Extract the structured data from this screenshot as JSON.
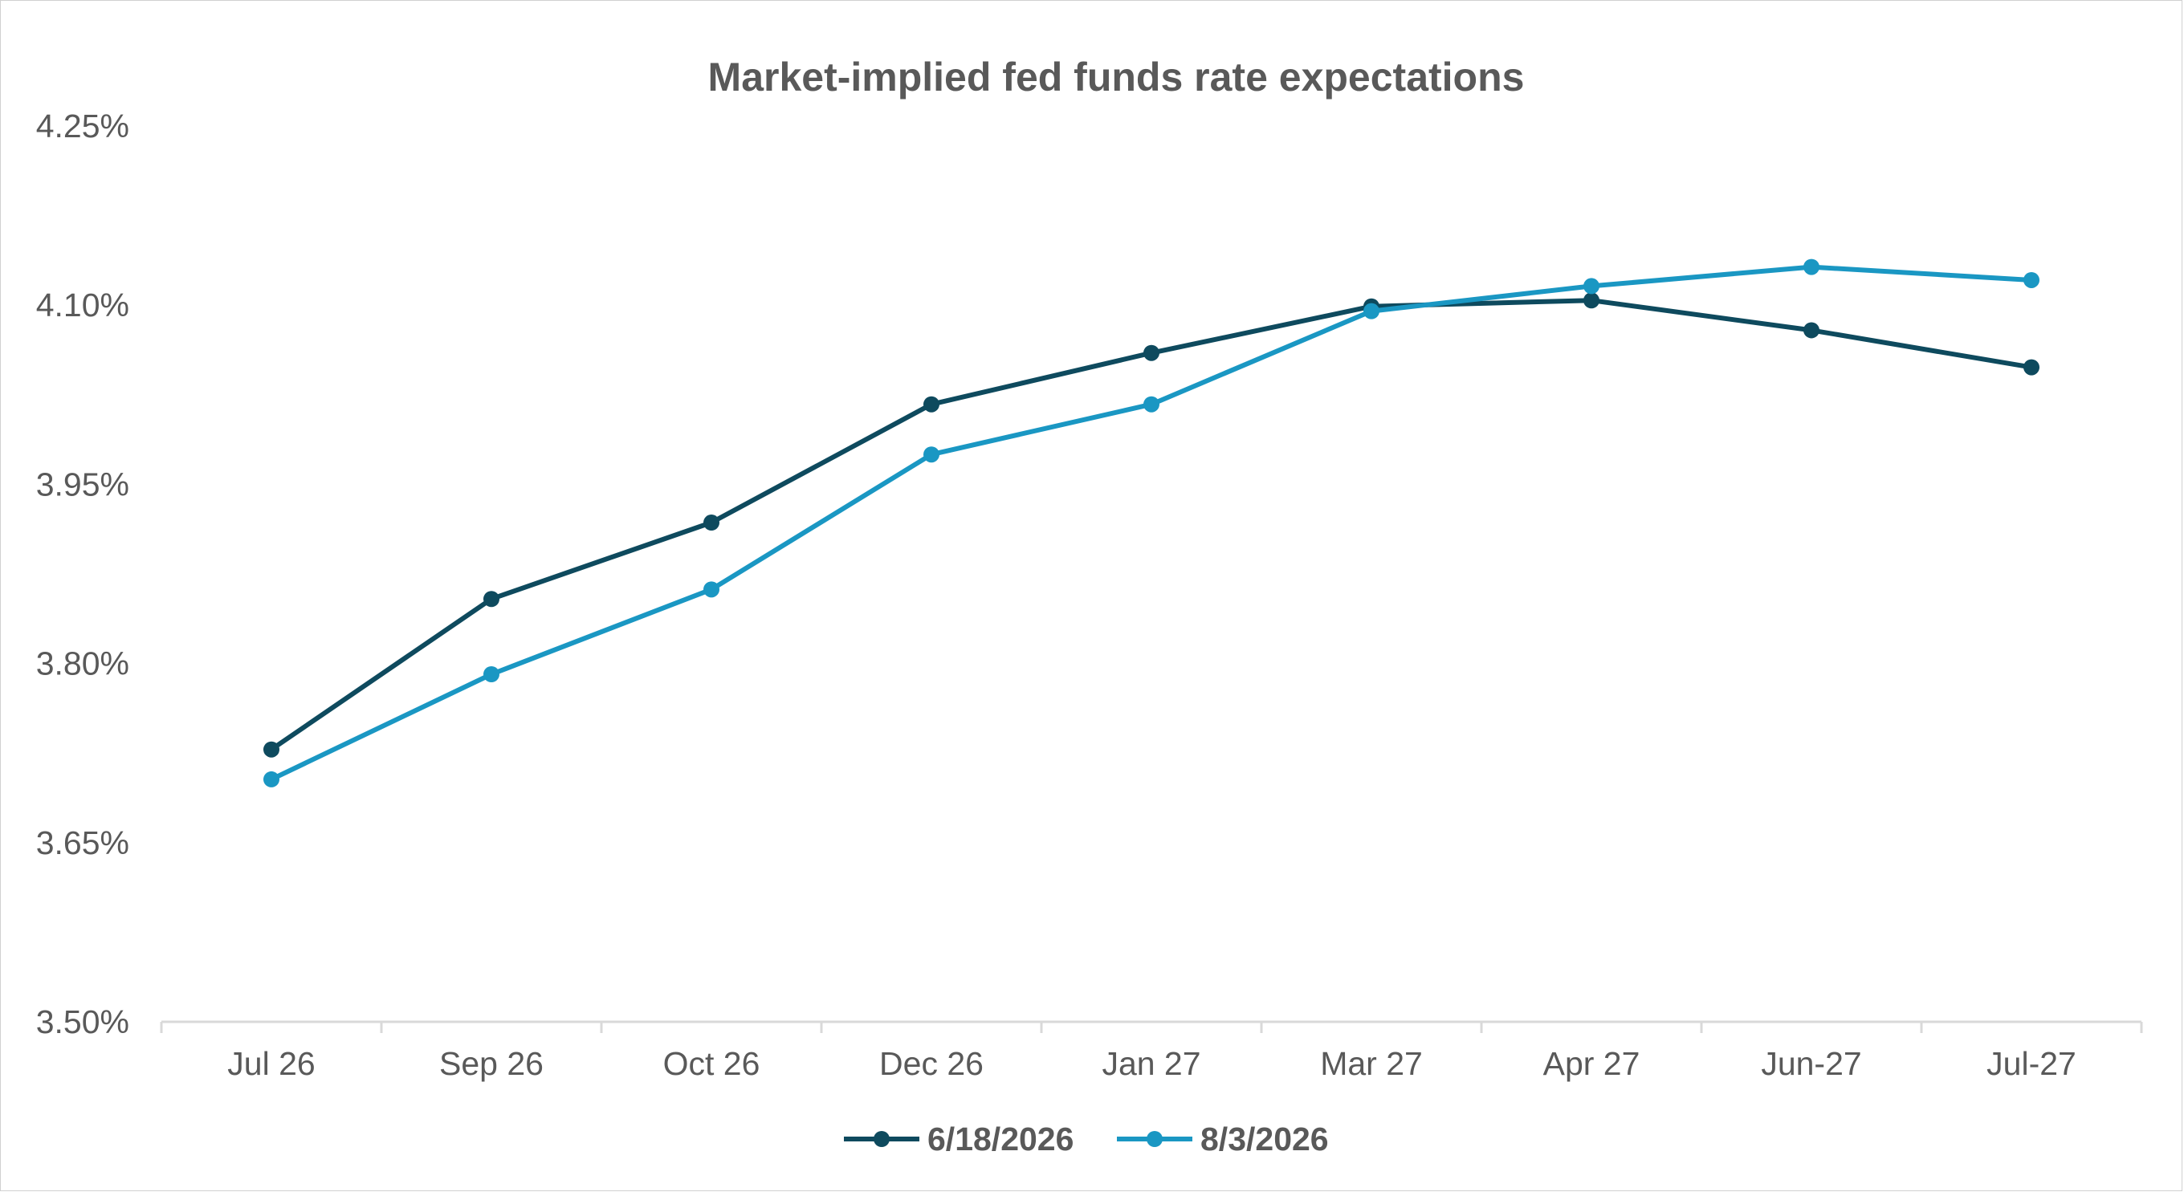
{
  "chart_data": {
    "type": "line",
    "title": "Market-implied fed funds rate expectations",
    "xlabel": "",
    "ylabel": "",
    "categories": [
      "Jul 26",
      "Sep 26",
      "Oct 26",
      "Dec 26",
      "Jan 27",
      "Mar 27",
      "Apr 27",
      "Jun-27",
      "Jul-27"
    ],
    "y_ticks": [
      "3.50%",
      "3.65%",
      "3.80%",
      "3.95%",
      "4.10%",
      "4.25%"
    ],
    "ylim": [
      3.5,
      4.25
    ],
    "grid": false,
    "legend_position": "bottom",
    "series": [
      {
        "name": "6/18/2026",
        "color": "#0e4a5e",
        "values": [
          3.728,
          3.854,
          3.918,
          4.017,
          4.06,
          4.099,
          4.104,
          4.079,
          4.048
        ]
      },
      {
        "name": "8/3/2026",
        "color": "#1a97c3",
        "values": [
          3.703,
          3.791,
          3.862,
          3.975,
          4.017,
          4.095,
          4.116,
          4.132,
          4.121
        ]
      }
    ]
  },
  "colors": {
    "title": "#595959",
    "tick_text": "#595959",
    "axis": "#d9d9d9",
    "frame": "#d0d0d0",
    "background": "#ffffff"
  }
}
